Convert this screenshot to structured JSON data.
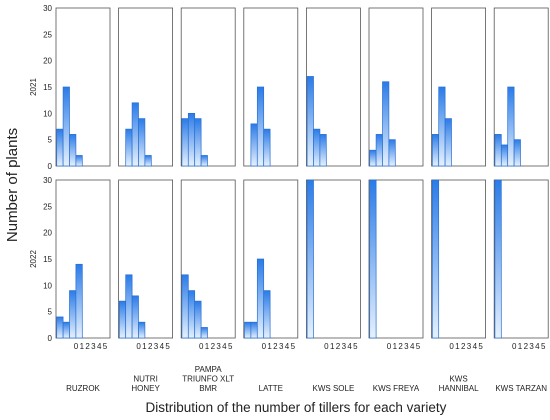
{
  "chart_data": {
    "type": "bar",
    "ylabel": "Number of plants",
    "xlabel": "Distribution of the number of tillers for each variety",
    "categories": [
      "0",
      "1",
      "2",
      "3",
      "4",
      "5"
    ],
    "ylim": [
      0,
      30
    ],
    "yticks": [
      "0",
      "5",
      "10",
      "15",
      "20",
      "25",
      "30"
    ],
    "rows": [
      "2021",
      "2022"
    ],
    "varieties": [
      [
        "RUZROK"
      ],
      [
        "NUTRI",
        "HONEY"
      ],
      [
        "PAMPA",
        "TRIUNFO XLT",
        "BMR"
      ],
      [
        "LATTE"
      ],
      [
        "KWS      SOLE"
      ],
      [
        "KWS      FREYA"
      ],
      [
        "KWS",
        "HANNIBAL"
      ],
      [
        "KWS  TARZAN"
      ]
    ],
    "series": [
      {
        "year": "2021",
        "panels": [
          [
            7,
            15,
            6,
            2,
            0,
            0
          ],
          [
            0,
            7,
            12,
            9,
            2,
            0
          ],
          [
            9,
            10,
            9,
            2,
            0,
            0
          ],
          [
            0,
            8,
            15,
            7,
            0,
            0
          ],
          [
            17,
            7,
            6,
            0,
            0,
            0
          ],
          [
            3,
            6,
            16,
            5,
            0,
            0
          ],
          [
            6,
            15,
            9,
            0,
            0,
            0
          ],
          [
            6,
            4,
            15,
            5,
            0,
            0
          ]
        ]
      },
      {
        "year": "2022",
        "panels": [
          [
            4,
            3,
            9,
            14,
            0,
            0
          ],
          [
            7,
            12,
            8,
            3,
            0,
            0
          ],
          [
            12,
            9,
            7,
            2,
            0,
            0
          ],
          [
            3,
            3,
            15,
            9,
            0,
            0
          ],
          [
            30,
            0,
            0,
            0,
            0,
            0
          ],
          [
            30,
            0,
            0,
            0,
            0,
            0
          ],
          [
            30,
            0,
            0,
            0,
            0,
            0
          ],
          [
            30,
            0,
            0,
            0,
            0,
            0
          ]
        ]
      }
    ],
    "bar_color": "#2a7be8",
    "bar_fill_light": "#e6f1fd",
    "bar_edge": "#2a6fcf",
    "grid": false
  }
}
